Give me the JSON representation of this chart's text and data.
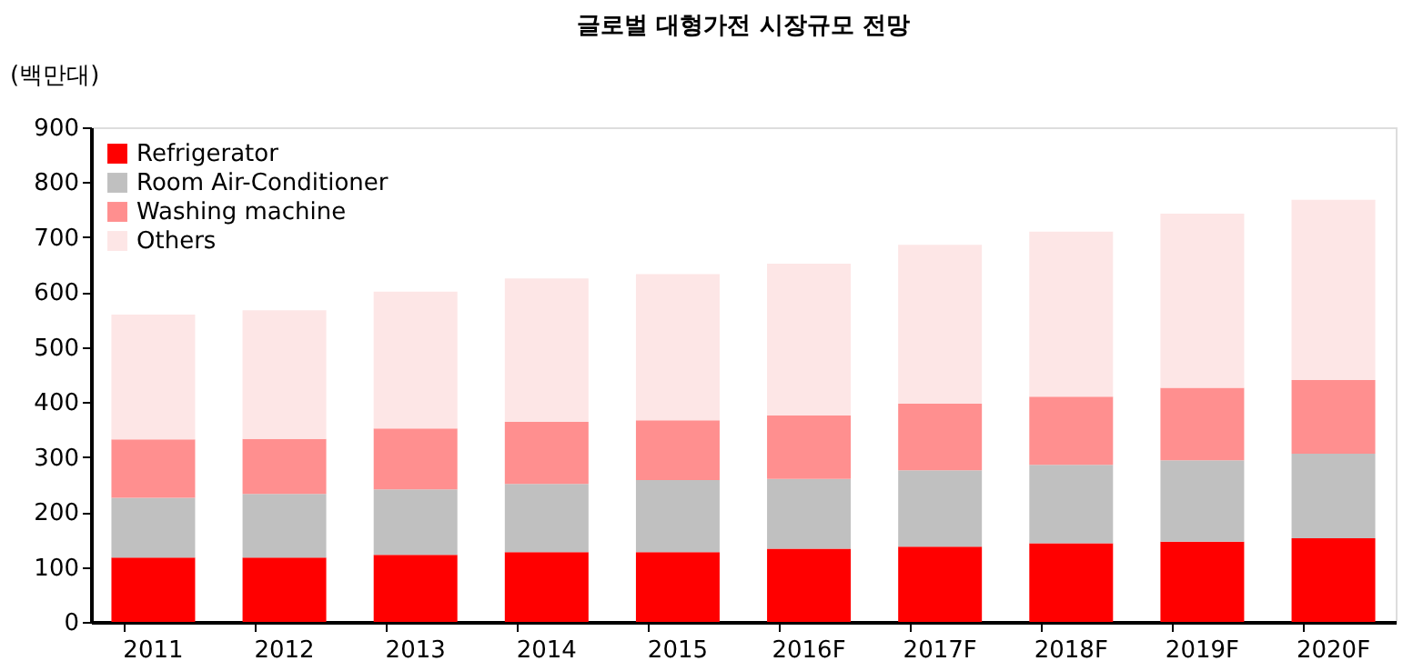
{
  "chart_data": {
    "type": "bar",
    "title": "글로벌 대형가전 시장규모 전망",
    "ylabel": "(백만대)",
    "stacked": true,
    "categories": [
      "2011",
      "2012",
      "2013",
      "2014",
      "2015",
      "2016F",
      "2017F",
      "2018F",
      "2019F",
      "2020F"
    ],
    "series": [
      {
        "name": "Refrigerator",
        "color": "#ff0000",
        "values": [
          117,
          117,
          122,
          127,
          127,
          133,
          137,
          143,
          146,
          152
        ]
      },
      {
        "name": "Room Air-Conditioner",
        "color": "#c0c0c0",
        "values": [
          109,
          116,
          119,
          124,
          131,
          127,
          139,
          143,
          148,
          154
        ]
      },
      {
        "name": "Washing machine",
        "color": "#ff8f8f",
        "values": [
          106,
          100,
          111,
          113,
          109,
          116,
          121,
          124,
          132,
          134
        ]
      },
      {
        "name": "Others",
        "color": "#fde6e6",
        "values": [
          227,
          234,
          249,
          261,
          266,
          276,
          289,
          300,
          317,
          328
        ]
      }
    ],
    "ylim": [
      0,
      900
    ],
    "yticks": [
      0,
      100,
      200,
      300,
      400,
      500,
      600,
      700,
      800,
      900
    ],
    "grid": false,
    "legend": "top left"
  }
}
